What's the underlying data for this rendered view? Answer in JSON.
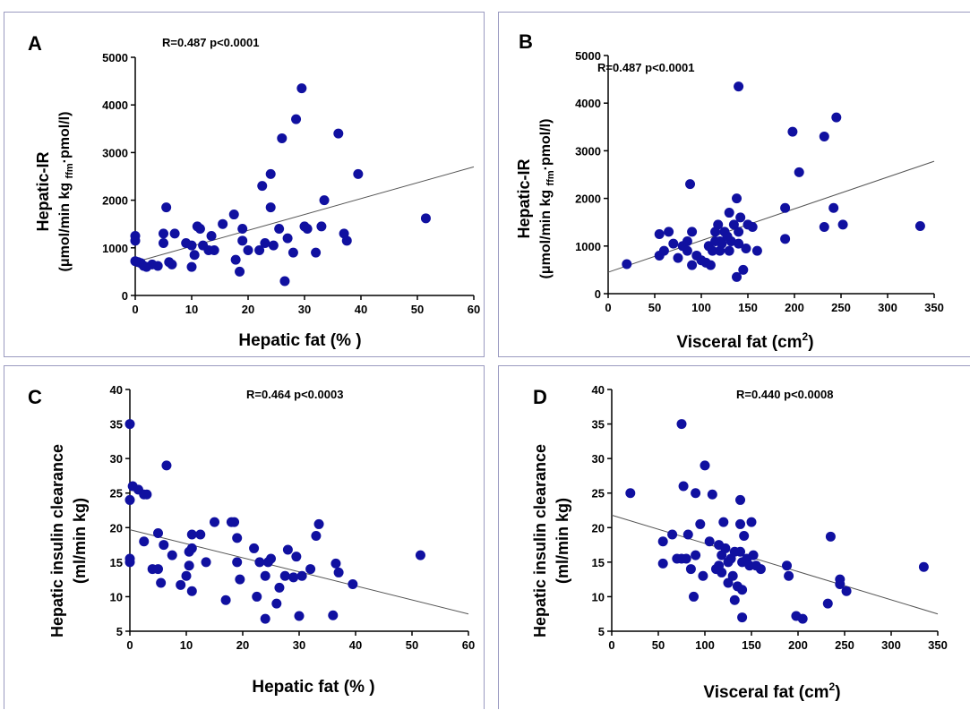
{
  "chart_data": [
    {
      "id": "a",
      "type": "scatter",
      "panel_label": "A",
      "annotation": "R=0.487 p<0.0001",
      "xlabel": "Hepatic fat (% )",
      "ylabel_main": "Hepatic-IR",
      "ylabel_sub_parts": [
        "(μmol/min kg ",
        "ffm",
        "·pmol/l)"
      ],
      "xlim": [
        0,
        60
      ],
      "ylim": [
        0,
        5000
      ],
      "xticks": [
        0,
        10,
        20,
        30,
        40,
        50,
        60
      ],
      "yticks": [
        0,
        1000,
        2000,
        3000,
        4000,
        5000
      ],
      "fit_line": {
        "x": [
          0,
          60
        ],
        "y": [
          700,
          2700
        ]
      },
      "points": [
        [
          0,
          1250
        ],
        [
          0,
          1150
        ],
        [
          0,
          720
        ],
        [
          0.5,
          700
        ],
        [
          1,
          680
        ],
        [
          1.5,
          620
        ],
        [
          2,
          600
        ],
        [
          3,
          650
        ],
        [
          4,
          620
        ],
        [
          5,
          1100
        ],
        [
          5,
          1300
        ],
        [
          5.5,
          1850
        ],
        [
          6,
          700
        ],
        [
          6.5,
          650
        ],
        [
          7,
          1300
        ],
        [
          9,
          1100
        ],
        [
          10,
          1050
        ],
        [
          10,
          600
        ],
        [
          10.5,
          850
        ],
        [
          11,
          1450
        ],
        [
          11.5,
          1400
        ],
        [
          12,
          1050
        ],
        [
          13,
          950
        ],
        [
          13.5,
          1250
        ],
        [
          14,
          950
        ],
        [
          15.5,
          1500
        ],
        [
          17.5,
          1700
        ],
        [
          17.8,
          750
        ],
        [
          18.5,
          500
        ],
        [
          19,
          1400
        ],
        [
          19,
          1150
        ],
        [
          20,
          950
        ],
        [
          22,
          950
        ],
        [
          22.5,
          2300
        ],
        [
          23,
          1100
        ],
        [
          24,
          2550
        ],
        [
          24,
          1850
        ],
        [
          24.5,
          1050
        ],
        [
          25.5,
          1400
        ],
        [
          26,
          3300
        ],
        [
          26.5,
          300
        ],
        [
          27,
          1200
        ],
        [
          28,
          900
        ],
        [
          28.5,
          3700
        ],
        [
          29.5,
          4350
        ],
        [
          30,
          1450
        ],
        [
          30.5,
          1400
        ],
        [
          32,
          900
        ],
        [
          33,
          1450
        ],
        [
          33.5,
          2000
        ],
        [
          36,
          3400
        ],
        [
          37,
          1300
        ],
        [
          37.5,
          1150
        ],
        [
          39.5,
          2550
        ],
        [
          51.5,
          1620
        ]
      ]
    },
    {
      "id": "b",
      "type": "scatter",
      "panel_label": "B",
      "annotation": "R=0.487 p<0.0001",
      "xlabel_parts": [
        "Visceral fat (cm",
        "2",
        ")"
      ],
      "ylabel_main": "Hepatic-IR",
      "ylabel_sub_parts": [
        "(μmol/min kg ",
        "ffm",
        "·pmol/l)"
      ],
      "xlim": [
        0,
        350
      ],
      "ylim": [
        0,
        5000
      ],
      "xticks": [
        0,
        50,
        100,
        150,
        200,
        250,
        300,
        350
      ],
      "yticks": [
        0,
        1000,
        2000,
        3000,
        4000,
        5000
      ],
      "fit_line": {
        "x": [
          0,
          350
        ],
        "y": [
          450,
          2780
        ]
      },
      "points": [
        [
          20,
          620
        ],
        [
          55,
          800
        ],
        [
          55,
          1250
        ],
        [
          60,
          900
        ],
        [
          65,
          1300
        ],
        [
          70,
          1050
        ],
        [
          75,
          750
        ],
        [
          80,
          1000
        ],
        [
          85,
          1100
        ],
        [
          85,
          900
        ],
        [
          88,
          2300
        ],
        [
          90,
          1300
        ],
        [
          90,
          600
        ],
        [
          95,
          800
        ],
        [
          100,
          700
        ],
        [
          105,
          650
        ],
        [
          108,
          1000
        ],
        [
          110,
          600
        ],
        [
          112,
          900
        ],
        [
          115,
          1100
        ],
        [
          115,
          1300
        ],
        [
          118,
          1450
        ],
        [
          120,
          1100
        ],
        [
          120,
          900
        ],
        [
          122,
          1050
        ],
        [
          125,
          1300
        ],
        [
          128,
          1200
        ],
        [
          130,
          1700
        ],
        [
          130,
          900
        ],
        [
          132,
          1100
        ],
        [
          135,
          1450
        ],
        [
          138,
          2000
        ],
        [
          138,
          350
        ],
        [
          140,
          1300
        ],
        [
          140,
          1050
        ],
        [
          140,
          4350
        ],
        [
          142,
          1600
        ],
        [
          145,
          500
        ],
        [
          148,
          950
        ],
        [
          150,
          1450
        ],
        [
          155,
          1400
        ],
        [
          160,
          900
        ],
        [
          190,
          1800
        ],
        [
          190,
          1150
        ],
        [
          198,
          3400
        ],
        [
          205,
          2550
        ],
        [
          232,
          3300
        ],
        [
          232,
          1400
        ],
        [
          242,
          1800
        ],
        [
          245,
          3700
        ],
        [
          252,
          1450
        ],
        [
          335,
          1420
        ]
      ]
    },
    {
      "id": "c",
      "type": "scatter",
      "panel_label": "C",
      "annotation": "R=0.464 p<0.0003",
      "xlabel": "Hepatic fat (% )",
      "ylabel_main": "Hepatic insulin clearance",
      "ylabel_sub": "(ml/min kg)",
      "xlim": [
        0,
        60
      ],
      "ylim": [
        5,
        40
      ],
      "xticks": [
        0,
        10,
        20,
        30,
        40,
        50,
        60
      ],
      "yticks": [
        5,
        10,
        15,
        20,
        25,
        30,
        35,
        40
      ],
      "fit_line": {
        "x": [
          0,
          60
        ],
        "y": [
          19.7,
          7.5
        ]
      },
      "points": [
        [
          0,
          35
        ],
        [
          0,
          24
        ],
        [
          0,
          15.5
        ],
        [
          0,
          15
        ],
        [
          0.5,
          26
        ],
        [
          1.5,
          25.5
        ],
        [
          2.5,
          24.8
        ],
        [
          3,
          24.8
        ],
        [
          2.5,
          18
        ],
        [
          4,
          14
        ],
        [
          5,
          19.2
        ],
        [
          5,
          14
        ],
        [
          5.5,
          12
        ],
        [
          6,
          17.5
        ],
        [
          6.5,
          29
        ],
        [
          7.5,
          16
        ],
        [
          9,
          11.7
        ],
        [
          10,
          13
        ],
        [
          10.5,
          16.5
        ],
        [
          10.5,
          14.5
        ],
        [
          11,
          19
        ],
        [
          11,
          17
        ],
        [
          11,
          10.8
        ],
        [
          12.5,
          19
        ],
        [
          13.5,
          15
        ],
        [
          15,
          20.8
        ],
        [
          17,
          9.5
        ],
        [
          18,
          20.8
        ],
        [
          18.5,
          20.8
        ],
        [
          19,
          18.5
        ],
        [
          19,
          15
        ],
        [
          19.5,
          12.5
        ],
        [
          22,
          17
        ],
        [
          22.5,
          10
        ],
        [
          23,
          15
        ],
        [
          24,
          6.8
        ],
        [
          24,
          13
        ],
        [
          24.5,
          15
        ],
        [
          25,
          15.5
        ],
        [
          26,
          9
        ],
        [
          26.5,
          11.3
        ],
        [
          27.5,
          13
        ],
        [
          28,
          16.8
        ],
        [
          29,
          12.8
        ],
        [
          29.5,
          15.8
        ],
        [
          30,
          7.2
        ],
        [
          30.5,
          13
        ],
        [
          32,
          14
        ],
        [
          33,
          18.8
        ],
        [
          33.5,
          20.5
        ],
        [
          36,
          7.3
        ],
        [
          36.5,
          14.8
        ],
        [
          37,
          13.5
        ],
        [
          39.5,
          11.8
        ],
        [
          51.5,
          16
        ]
      ]
    },
    {
      "id": "d",
      "type": "scatter",
      "panel_label": "D",
      "annotation": "R=0.440 p<0.0008",
      "xlabel_parts": [
        "Visceral fat (cm",
        "2",
        ")"
      ],
      "ylabel_main": "Hepatic insulin clearance",
      "ylabel_sub": "(ml/min kg)",
      "xlim": [
        0,
        350
      ],
      "ylim": [
        5,
        40
      ],
      "xticks": [
        0,
        50,
        100,
        150,
        200,
        250,
        300,
        350
      ],
      "yticks": [
        5,
        10,
        15,
        20,
        25,
        30,
        35,
        40
      ],
      "fit_line": {
        "x": [
          0,
          350
        ],
        "y": [
          21.8,
          7.5
        ]
      },
      "points": [
        [
          20,
          25
        ],
        [
          55,
          18
        ],
        [
          55,
          14.8
        ],
        [
          65,
          19
        ],
        [
          70,
          15.5
        ],
        [
          75,
          35
        ],
        [
          75,
          15.5
        ],
        [
          77,
          26
        ],
        [
          80,
          15.5
        ],
        [
          82,
          19
        ],
        [
          85,
          14
        ],
        [
          88,
          10
        ],
        [
          90,
          25
        ],
        [
          90,
          16
        ],
        [
          95,
          20.5
        ],
        [
          98,
          13
        ],
        [
          100,
          29
        ],
        [
          105,
          18
        ],
        [
          108,
          24.8
        ],
        [
          112,
          14
        ],
        [
          115,
          17.5
        ],
        [
          115,
          14.5
        ],
        [
          118,
          16
        ],
        [
          118,
          13.5
        ],
        [
          120,
          20.8
        ],
        [
          122,
          17
        ],
        [
          125,
          12
        ],
        [
          125,
          15
        ],
        [
          128,
          15.5
        ],
        [
          130,
          13
        ],
        [
          132,
          16.5
        ],
        [
          132,
          9.5
        ],
        [
          135,
          11.5
        ],
        [
          138,
          24
        ],
        [
          138,
          16.5
        ],
        [
          138,
          20.5
        ],
        [
          140,
          11
        ],
        [
          140,
          15
        ],
        [
          140,
          7
        ],
        [
          142,
          18.8
        ],
        [
          145,
          15.5
        ],
        [
          148,
          14.5
        ],
        [
          150,
          20.8
        ],
        [
          152,
          16
        ],
        [
          155,
          14.5
        ],
        [
          160,
          14
        ],
        [
          188,
          14.5
        ],
        [
          190,
          13
        ],
        [
          198,
          7.2
        ],
        [
          205,
          6.8
        ],
        [
          232,
          9
        ],
        [
          235,
          18.7
        ],
        [
          245,
          12.5
        ],
        [
          245,
          11.8
        ],
        [
          252,
          10.8
        ],
        [
          335,
          14.3
        ]
      ]
    }
  ]
}
